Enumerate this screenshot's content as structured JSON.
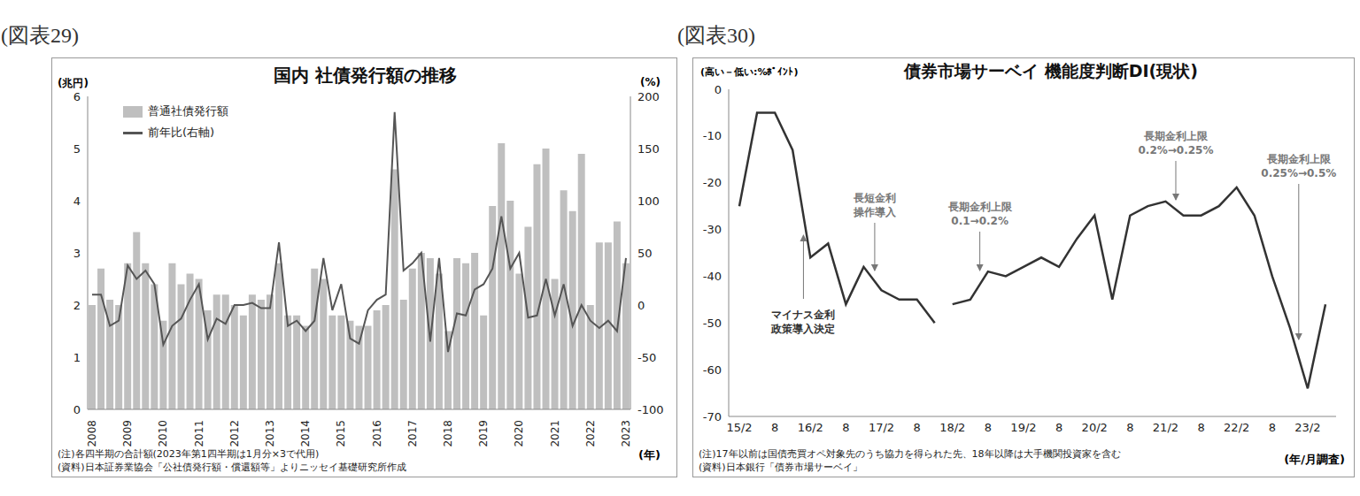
{
  "chart_data": [
    {
      "type": "bar",
      "figure_label": "(図表29)",
      "title": "国内 社債発行額の推移",
      "y_label": "(兆円)",
      "y2_label": "(%)",
      "x_label": "(年)",
      "legend": "upper left",
      "grid": false,
      "notes": [
        "(注)各四半期の合計額(2023年第1四半期は1月分×3で代用)",
        "(資料)日本証券業協会「公社債発行額・償還額等」よりニッセイ基礎研究所作成"
      ],
      "categories": [
        "2008",
        null,
        null,
        null,
        "2009",
        null,
        null,
        null,
        "2010",
        null,
        null,
        null,
        "2011",
        null,
        null,
        null,
        "2012",
        null,
        null,
        null,
        "2013",
        null,
        null,
        null,
        "2014",
        null,
        null,
        null,
        "2015",
        null,
        null,
        null,
        "2016",
        null,
        null,
        null,
        "2017",
        null,
        null,
        null,
        "2018",
        null,
        null,
        null,
        "2019",
        null,
        null,
        null,
        "2020",
        null,
        null,
        null,
        "2021",
        null,
        null,
        null,
        "2022",
        null,
        null,
        null,
        "2023"
      ],
      "ylim": [
        0,
        6
      ],
      "yticks": [
        0,
        1,
        2,
        3,
        4,
        5,
        6
      ],
      "y2lim": [
        -100,
        200
      ],
      "y2ticks": [
        -100,
        -50,
        0,
        50,
        100,
        150,
        200
      ],
      "series": [
        {
          "name": "普通社債発行額",
          "type": "bar",
          "color": "#bfbfbf",
          "values": [
            2.0,
            2.7,
            2.1,
            2.0,
            2.8,
            3.4,
            2.8,
            2.4,
            1.7,
            2.8,
            2.4,
            2.6,
            2.5,
            1.9,
            2.2,
            2.2,
            2.0,
            1.8,
            2.2,
            2.1,
            2.2,
            2.8,
            1.8,
            1.8,
            1.6,
            2.7,
            2.5,
            1.8,
            1.8,
            1.7,
            1.6,
            1.6,
            1.9,
            2.0,
            4.6,
            2.1,
            2.7,
            3.0,
            2.9,
            2.6,
            1.5,
            2.9,
            2.8,
            3.0,
            1.8,
            3.9,
            5.1,
            4.0,
            2.6,
            3.5,
            4.7,
            5.0,
            2.5,
            4.2,
            3.8,
            4.9,
            2.0,
            3.2,
            3.2,
            3.6,
            2.8
          ]
        },
        {
          "name": "前年比(右軸)",
          "type": "line",
          "axis": "y2",
          "color": "#555555",
          "values": [
            10,
            10,
            -20,
            -15,
            38,
            25,
            33,
            20,
            -38,
            -20,
            -13,
            5,
            20,
            -33,
            -13,
            -18,
            0,
            0,
            2,
            -3,
            -3,
            60,
            -20,
            -15,
            -25,
            -15,
            45,
            -5,
            20,
            -32,
            -37,
            -5,
            5,
            10,
            185,
            33,
            40,
            50,
            -35,
            45,
            -45,
            -8,
            -10,
            15,
            20,
            35,
            85,
            35,
            50,
            -12,
            -10,
            25,
            -10,
            20,
            -20,
            0,
            -15,
            -22,
            -15,
            -25,
            45
          ]
        }
      ]
    },
    {
      "type": "line",
      "figure_label": "(図表30)",
      "title": "債券市場サーベイ  機能度判断DI(現状)",
      "y_label": "(高い－低い:%ﾎﾟｲﾝﾄ)",
      "x_label": "(年/月調査)",
      "grid": false,
      "notes": [
        "(注)17年以前は国債売買オペ対象先のうち協力を得られた先、18年以降は大手機関投資家を含む",
        "(資料)日本銀行「債券市場サーベイ」"
      ],
      "categories": [
        "15/2",
        null,
        "8",
        null,
        "16/2",
        null,
        "8",
        null,
        "17/2",
        null,
        "8",
        null,
        "18/2",
        null,
        "8",
        null,
        "19/2",
        null,
        "8",
        null,
        "20/2",
        null,
        "8",
        null,
        "21/2",
        null,
        "8",
        null,
        "22/2",
        null,
        "8",
        null,
        "23/2",
        null
      ],
      "ylim": [
        -70,
        0
      ],
      "yticks": [
        -70,
        -60,
        -50,
        -40,
        -30,
        -20,
        -10,
        0
      ],
      "series": [
        {
          "color": "#333333",
          "values": [
            -25,
            -5,
            -5,
            -13,
            -36,
            -33,
            -46,
            -38,
            -43,
            -45,
            -45,
            -50,
            null,
            null,
            null,
            null,
            null,
            null,
            null,
            null,
            null,
            null,
            null,
            null,
            null,
            null,
            null,
            null,
            null,
            null,
            null,
            null,
            null,
            null
          ]
        },
        {
          "color": "#333333",
          "values": [
            null,
            null,
            null,
            null,
            null,
            null,
            null,
            null,
            null,
            null,
            null,
            null,
            -46,
            -45,
            -39,
            -40,
            -38,
            -36,
            -38,
            -32,
            -27,
            -45,
            -27,
            -25,
            -24,
            -27,
            -27,
            -25,
            -21,
            -27,
            -40,
            -51,
            -64,
            -46
          ]
        }
      ],
      "annotations": [
        {
          "text": [
            "マイナス金利",
            "政策導入決定"
          ]
        },
        {
          "text": [
            "長短金利",
            "操作導入"
          ]
        },
        {
          "text": [
            "長期金利上限",
            "0.1→0.2%"
          ]
        },
        {
          "text": [
            "長期金利上限",
            "0.2%→0.25%"
          ]
        },
        {
          "text": [
            "長期金利上限",
            "0.25%→0.5%"
          ]
        }
      ]
    }
  ]
}
